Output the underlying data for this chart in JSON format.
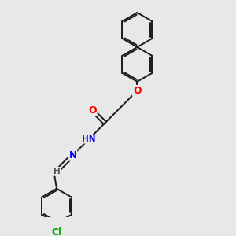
{
  "bg_color": "#e8e8e8",
  "bond_color": "#1a1a1a",
  "bond_width": 1.4,
  "atom_colors": {
    "O": "#ff0000",
    "N": "#0000ee",
    "Cl": "#00aa00",
    "H": "#555555",
    "C": "#1a1a1a"
  },
  "font_size": 7.5,
  "fig_width": 3.0,
  "fig_height": 3.0,
  "xlim": [
    0,
    9
  ],
  "ylim": [
    0,
    9
  ]
}
